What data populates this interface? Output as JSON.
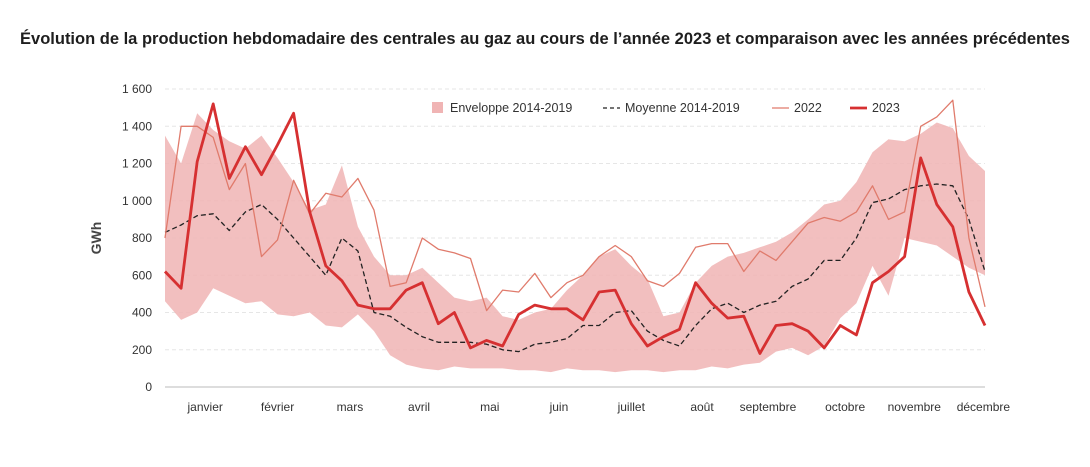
{
  "chart_data": {
    "type": "line",
    "title": "Évolution de la production hebdomadaire des centrales au gaz au cours de l’année 2023 et comparaison avec les années précédentes",
    "ylabel": "GWh",
    "xlabel": "",
    "ylim": [
      0,
      1600
    ],
    "yticks": [
      0,
      200,
      400,
      600,
      800,
      1000,
      1200,
      1400,
      1600
    ],
    "ytick_labels": [
      "0",
      "200",
      "400",
      "600",
      "800",
      "1 000",
      "1 200",
      "1 400",
      "1 600"
    ],
    "x": [
      1,
      2,
      3,
      4,
      5,
      6,
      7,
      8,
      9,
      10,
      11,
      12,
      13,
      14,
      15,
      16,
      17,
      18,
      19,
      20,
      21,
      22,
      23,
      24,
      25,
      26,
      27,
      28,
      29,
      30,
      31,
      32,
      33,
      34,
      35,
      36,
      37,
      38,
      39,
      40,
      41,
      42,
      43,
      44,
      45,
      46,
      47,
      48,
      49,
      50,
      51,
      52
    ],
    "months": [
      "janvier",
      "février",
      "mars",
      "avril",
      "mai",
      "juin",
      "juillet",
      "août",
      "septembre",
      "octobre",
      "novembre",
      "décembre"
    ],
    "month_positions": [
      3.5,
      8.0,
      12.5,
      16.8,
      21.2,
      25.5,
      30.0,
      34.4,
      38.5,
      43.3,
      47.6,
      51.9
    ],
    "grid": true,
    "legend_position": "top-right",
    "series": [
      {
        "name": "Enveloppe 2014-2019",
        "kind": "band",
        "color": "#f0b4b4",
        "lower": [
          460,
          360,
          400,
          530,
          490,
          450,
          460,
          390,
          380,
          400,
          330,
          320,
          390,
          300,
          170,
          120,
          100,
          90,
          110,
          100,
          100,
          100,
          90,
          90,
          80,
          100,
          90,
          90,
          80,
          90,
          90,
          80,
          90,
          90,
          110,
          100,
          120,
          130,
          190,
          210,
          170,
          220,
          370,
          450,
          650,
          490,
          800,
          780,
          760,
          700,
          640,
          600
        ],
        "upper": [
          1350,
          1200,
          1470,
          1380,
          1320,
          1280,
          1350,
          1230,
          1100,
          950,
          980,
          1190,
          860,
          700,
          600,
          600,
          640,
          560,
          480,
          460,
          480,
          380,
          360,
          400,
          420,
          520,
          600,
          700,
          740,
          650,
          580,
          380,
          400,
          560,
          650,
          700,
          720,
          750,
          780,
          830,
          900,
          980,
          1000,
          1100,
          1260,
          1330,
          1320,
          1360,
          1420,
          1390,
          1240,
          1160
        ]
      },
      {
        "name": "Moyenne  2014-2019",
        "kind": "dashed",
        "color": "#222222",
        "values": [
          830,
          870,
          920,
          930,
          840,
          940,
          980,
          900,
          800,
          700,
          600,
          800,
          730,
          400,
          380,
          320,
          270,
          240,
          240,
          240,
          230,
          200,
          190,
          230,
          240,
          260,
          330,
          330,
          400,
          410,
          300,
          250,
          220,
          330,
          420,
          450,
          400,
          440,
          460,
          540,
          580,
          680,
          680,
          800,
          990,
          1010,
          1060,
          1080,
          1090,
          1080,
          900,
          620
        ]
      },
      {
        "name": "2022",
        "kind": "thin",
        "color": "#e07b6c",
        "values": [
          800,
          1400,
          1400,
          1340,
          1060,
          1200,
          700,
          790,
          1110,
          930,
          1040,
          1020,
          1120,
          950,
          540,
          560,
          800,
          740,
          720,
          690,
          410,
          520,
          510,
          610,
          480,
          560,
          600,
          700,
          760,
          700,
          570,
          540,
          610,
          750,
          770,
          770,
          620,
          730,
          680,
          780,
          880,
          910,
          890,
          940,
          1080,
          900,
          940,
          1400,
          1450,
          1540,
          800,
          430
        ]
      },
      {
        "name": "2023",
        "kind": "thick",
        "color": "#d63031",
        "values": [
          620,
          530,
          1210,
          1520,
          1120,
          1290,
          1140,
          1300,
          1470,
          940,
          650,
          570,
          440,
          420,
          420,
          520,
          560,
          340,
          400,
          210,
          250,
          220,
          390,
          440,
          420,
          420,
          360,
          510,
          520,
          340,
          220,
          270,
          310,
          560,
          450,
          370,
          380,
          180,
          330,
          340,
          300,
          210,
          330,
          280,
          560,
          620,
          700,
          1230,
          980,
          860,
          510,
          330
        ]
      }
    ]
  }
}
